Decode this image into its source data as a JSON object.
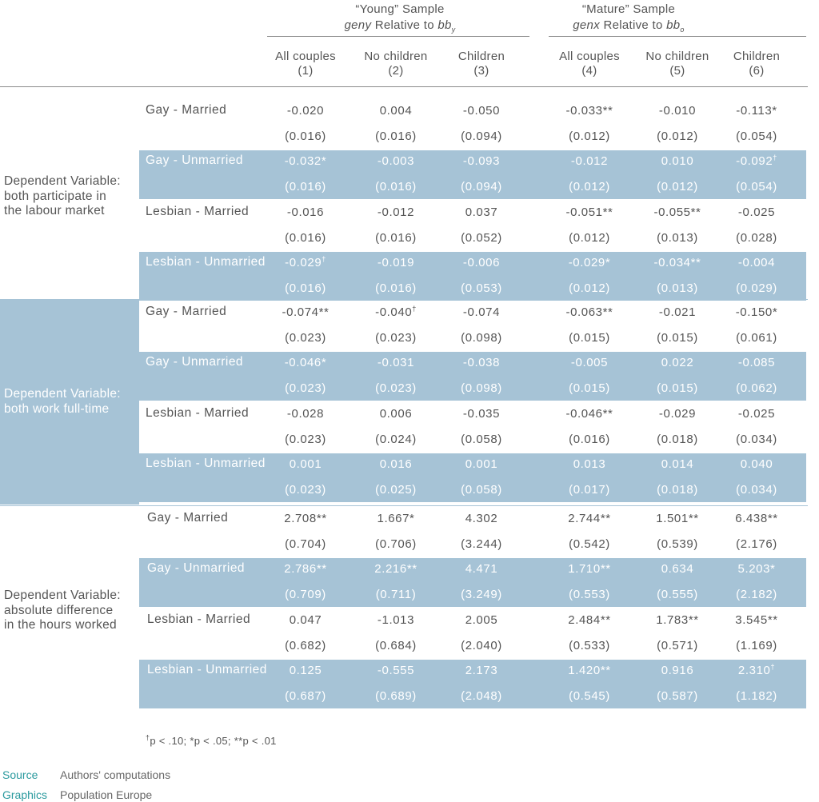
{
  "header": {
    "young": {
      "title": "“Young” Sample",
      "sub_prefix": "geny",
      "sub_mid": " Relative to ",
      "sub_var": "bb",
      "sub_sub": "y"
    },
    "mature": {
      "title": "“Mature” Sample",
      "sub_prefix": "genx",
      "sub_mid": " Relative to ",
      "sub_var": "bb",
      "sub_sub": "o"
    }
  },
  "columns": [
    {
      "label": "All couples",
      "num": "(1)"
    },
    {
      "label": "No children",
      "num": "(2)"
    },
    {
      "label": "Children",
      "num": "(3)"
    },
    {
      "label": "All couples",
      "num": "(4)"
    },
    {
      "label": "No children",
      "num": "(5)"
    },
    {
      "label": "Children",
      "num": "(6)"
    }
  ],
  "groups": [
    {
      "dep_lines": [
        "Dependent Variable:",
        "both participate in",
        "the labour market"
      ],
      "rows": [
        {
          "label": "Gay - Married",
          "est": [
            "-0.020",
            "0.004",
            "-0.050",
            "-0.033**",
            "-0.010",
            "-0.113*"
          ],
          "se": [
            "(0.016)",
            "(0.016)",
            "(0.094)",
            "(0.012)",
            "(0.012)",
            "(0.054)"
          ]
        },
        {
          "label": "Gay - Unmarried",
          "est": [
            "-0.032*",
            "-0.003",
            "-0.093",
            "-0.012",
            "0.010",
            "-0.092†"
          ],
          "se": [
            "(0.016)",
            "(0.016)",
            "(0.094)",
            "(0.012)",
            "(0.012)",
            "(0.054)"
          ]
        },
        {
          "label": "Lesbian - Married",
          "est": [
            "-0.016",
            "-0.012",
            "0.037",
            "-0.051**",
            "-0.055**",
            "-0.025"
          ],
          "se": [
            "(0.016)",
            "(0.016)",
            "(0.052)",
            "(0.012)",
            "(0.013)",
            "(0.028)"
          ]
        },
        {
          "label": "Lesbian - Unmarried",
          "est": [
            "-0.029†",
            "-0.019",
            "-0.006",
            "-0.029*",
            "-0.034**",
            "-0.004"
          ],
          "se": [
            "(0.016)",
            "(0.016)",
            "(0.053)",
            "(0.012)",
            "(0.013)",
            "(0.029)"
          ]
        }
      ]
    },
    {
      "dep_lines": [
        "Dependent Variable:",
        "both work full-time"
      ],
      "rows": [
        {
          "label": "Gay - Married",
          "est": [
            "-0.074**",
            "-0.040†",
            "-0.074",
            "-0.063**",
            "-0.021",
            "-0.150*"
          ],
          "se": [
            "(0.023)",
            "(0.023)",
            "(0.098)",
            "(0.015)",
            "(0.015)",
            "(0.061)"
          ]
        },
        {
          "label": "Gay - Unmarried",
          "est": [
            "-0.046*",
            "-0.031",
            "-0.038",
            "-0.005",
            "0.022",
            "-0.085"
          ],
          "se": [
            "(0.023)",
            "(0.023)",
            "(0.098)",
            "(0.015)",
            "(0.015)",
            "(0.062)"
          ]
        },
        {
          "label": "Lesbian - Married",
          "est": [
            "-0.028",
            "0.006",
            "-0.035",
            "-0.046**",
            "-0.029",
            "-0.025"
          ],
          "se": [
            "(0.023)",
            "(0.024)",
            "(0.058)",
            "(0.016)",
            "(0.018)",
            "(0.034)"
          ]
        },
        {
          "label": "Lesbian - Unmarried",
          "est": [
            "0.001",
            "0.016",
            "0.001",
            "0.013",
            "0.014",
            "0.040"
          ],
          "se": [
            "(0.023)",
            "(0.025)",
            "(0.058)",
            "(0.017)",
            "(0.018)",
            "(0.034)"
          ]
        }
      ]
    },
    {
      "dep_lines": [
        "Dependent Variable:",
        "absolute difference",
        "in the hours worked"
      ],
      "rows": [
        {
          "label": "Gay - Married",
          "est": [
            "2.708**",
            "1.667*",
            "4.302",
            "2.744**",
            "1.501**",
            "6.438**"
          ],
          "se": [
            "(0.704)",
            "(0.706)",
            "(3.244)",
            "(0.542)",
            "(0.539)",
            "(2.176)"
          ]
        },
        {
          "label": "Gay - Unmarried",
          "est": [
            "2.786**",
            "2.216**",
            "4.471",
            "1.710**",
            "0.634",
            "5.203*"
          ],
          "se": [
            "(0.709)",
            "(0.711)",
            "(3.249)",
            "(0.553)",
            "(0.555)",
            "(2.182)"
          ]
        },
        {
          "label": "Lesbian - Married",
          "est": [
            "0.047",
            "-1.013",
            "2.005",
            "2.484**",
            "1.783**",
            "3.545**"
          ],
          "se": [
            "(0.682)",
            "(0.684)",
            "(2.040)",
            "(0.533)",
            "(0.571)",
            "(1.169)"
          ]
        },
        {
          "label": "Lesbian - Unmarried",
          "est": [
            "0.125",
            "-0.555",
            "2.173",
            "1.420**",
            "0.916",
            "2.310†"
          ],
          "se": [
            "(0.687)",
            "(0.689)",
            "(2.048)",
            "(0.545)",
            "(0.587)",
            "(1.182)"
          ]
        }
      ]
    }
  ],
  "footnote": "†p < .10; *p < .05; **p < .01",
  "source": {
    "label": "Source",
    "value": "Authors' computations"
  },
  "graphics": {
    "label": "Graphics",
    "value": "Population Europe"
  },
  "colors": {
    "band": "#a6c3d6",
    "text": "#555555",
    "source_label": "#2a9a9e"
  }
}
